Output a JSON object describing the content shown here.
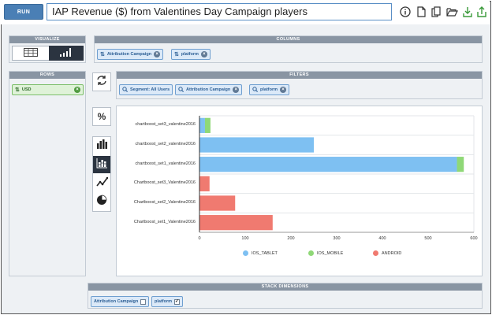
{
  "toolbar": {
    "run_label": "RUN",
    "query_value": "IAP Revenue ($) from Valentines Day Campaign players",
    "icons": [
      "info-icon",
      "document-icon",
      "copy-icon",
      "folder-open-icon",
      "download-icon",
      "share-icon"
    ]
  },
  "visualize": {
    "title": "VISUALIZE"
  },
  "columns": {
    "title": "COLUMNS",
    "chips": [
      {
        "label": "Attribution Campaign"
      },
      {
        "label": "platform"
      }
    ]
  },
  "rows": {
    "title": "ROWS",
    "chips": [
      {
        "label": "USD"
      }
    ]
  },
  "filters": {
    "title": "FILTERS",
    "chips": [
      {
        "label": "Segment: All Users"
      },
      {
        "label": "Attribution Campaign"
      },
      {
        "label": "platform"
      }
    ]
  },
  "side_buttons": {
    "swap_icon": "swap-icon",
    "percent_label": "%",
    "chart_types": [
      "bar-chart-icon",
      "stacked-bar-icon",
      "line-chart-icon",
      "pie-chart-icon"
    ]
  },
  "stack_dimensions": {
    "title": "STACK DIMENSIONS",
    "chips": [
      {
        "label": "Attribution Campaign",
        "checked": false
      },
      {
        "label": "platform",
        "checked": true
      }
    ]
  },
  "colors": {
    "IOS_TABLET": "#7ec0f2",
    "IOS_MOBILE": "#8fd877",
    "ANDROID": "#f07a70"
  },
  "chart_data": {
    "type": "bar",
    "orientation": "horizontal",
    "stacked": true,
    "categories": [
      "chartboost_set3_valentine2016",
      "chartboost_set2_valentine2016",
      "chartboost_set1_valentine2016",
      "Chartboost_set3_Valentine2016",
      "Chartboost_set2_Valentine2016",
      "Chartboost_set1_Valentine2016"
    ],
    "series": [
      {
        "name": "IOS_TABLET",
        "values": [
          12,
          250,
          563,
          0,
          0,
          0
        ]
      },
      {
        "name": "IOS_MOBILE",
        "values": [
          12,
          0,
          15,
          0,
          0,
          0
        ]
      },
      {
        "name": "ANDROID",
        "values": [
          0,
          0,
          0,
          22,
          78,
          160
        ]
      }
    ],
    "xlim": [
      0,
      600
    ],
    "xticks": [
      0,
      100,
      200,
      300,
      400,
      500,
      600
    ],
    "grid": true,
    "legend": "bottom"
  }
}
